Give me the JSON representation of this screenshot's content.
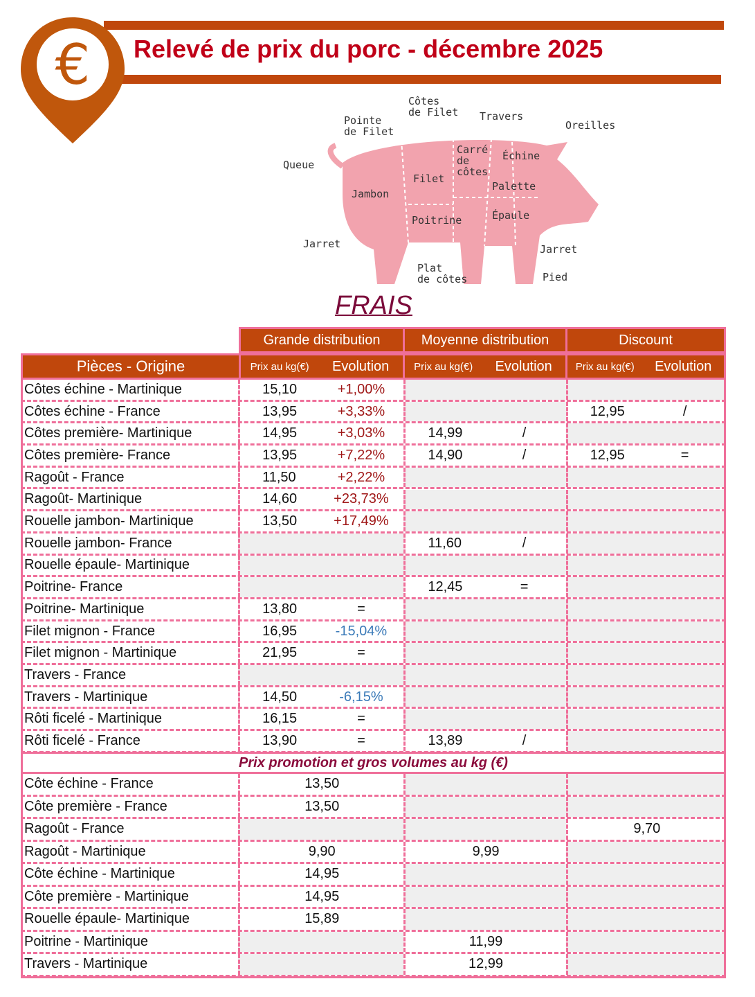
{
  "header": {
    "title": "Relevé de prix du porc - décembre 2025",
    "icon": "euro-pin-icon"
  },
  "pig_labels": {
    "pointe": "Pointe\nde Filet",
    "cotes_filet": "Côtes\nde Filet",
    "travers": "Travers",
    "oreilles": "Oreilles",
    "queue": "Queue",
    "carre": "Carré\nde\ncôtes",
    "echine": "Échine",
    "filet": "Filet",
    "jambon": "Jambon",
    "palette": "Palette",
    "poitrine": "Poitrine",
    "epaule": "Épaule",
    "jarret_l": "Jarret",
    "jarret_r": "Jarret",
    "plat": "Plat\nde côtes",
    "pied": "Pied"
  },
  "section_title": "FRAIS",
  "colors": {
    "accent": "#c0470c",
    "title": "#c00018",
    "border": "#ef6f9a",
    "up": "#a01818",
    "down": "#3a7ab8",
    "empty": "#efefef"
  },
  "table": {
    "groups": [
      "Grande distribution",
      "Moyenne distribution",
      "Discount"
    ],
    "first_col": "Pièces - Origine",
    "price_label": "Prix au kg(€)",
    "evol_label": "Evolution",
    "rows": [
      [
        "Côtes échine - Martinique",
        "15,10",
        "+1,00%",
        "",
        "",
        "",
        ""
      ],
      [
        "Côtes échine - France",
        "13,95",
        "+3,33%",
        "",
        "",
        "12,95",
        "/"
      ],
      [
        "Côtes première- Martinique",
        "14,95",
        "+3,03%",
        "14,99",
        "/",
        "",
        ""
      ],
      [
        "Côtes première- France",
        "13,95",
        "+7,22%",
        "14,90",
        "/",
        "12,95",
        "="
      ],
      [
        "Ragoût - France",
        "11,50",
        "+2,22%",
        "",
        "",
        "",
        ""
      ],
      [
        "Ragoût- Martinique",
        "14,60",
        "+23,73%",
        "",
        "",
        "",
        ""
      ],
      [
        "Rouelle jambon- Martinique",
        "13,50",
        "+17,49%",
        "",
        "",
        "",
        ""
      ],
      [
        "Rouelle jambon- France",
        "",
        "",
        "11,60",
        "/",
        "",
        ""
      ],
      [
        "Rouelle épaule- Martinique",
        "",
        "",
        "",
        "",
        "",
        ""
      ],
      [
        "Poitrine- France",
        "",
        "",
        "12,45",
        "=",
        "",
        ""
      ],
      [
        "Poitrine- Martinique",
        "13,80",
        "=",
        "",
        "",
        "",
        ""
      ],
      [
        "Filet mignon - France",
        "16,95",
        "-15,04%",
        "",
        "",
        "",
        ""
      ],
      [
        "Filet mignon - Martinique",
        "21,95",
        "=",
        "",
        "",
        "",
        ""
      ],
      [
        "Travers - France",
        "",
        "",
        "",
        "",
        "",
        ""
      ],
      [
        "Travers - Martinique",
        "14,50",
        "-6,15%",
        "",
        "",
        "",
        ""
      ],
      [
        "Rôti ficelé - Martinique",
        "16,15",
        "=",
        "",
        "",
        "",
        ""
      ],
      [
        "Rôti ficelé - France",
        "13,90",
        "=",
        "13,89",
        "/",
        "",
        ""
      ]
    ],
    "promo_title": "Prix promotion et gros volumes au kg (€)",
    "promo_rows": [
      [
        "Côte échine - France",
        "13,50",
        "",
        ""
      ],
      [
        "Côte première - France",
        "13,50",
        "",
        ""
      ],
      [
        "Ragoût - France",
        "",
        "",
        "9,70"
      ],
      [
        "Ragoût - Martinique",
        "9,90",
        "9,99",
        ""
      ],
      [
        "Côte échine - Martinique",
        "14,95",
        "",
        ""
      ],
      [
        "Côte première - Martinique",
        "14,95",
        "",
        ""
      ],
      [
        "Rouelle épaule- Martinique",
        "15,89",
        "",
        ""
      ],
      [
        "Poitrine - Martinique",
        "",
        "11,99",
        ""
      ],
      [
        "Travers - Martinique",
        "",
        "12,99",
        ""
      ]
    ]
  }
}
